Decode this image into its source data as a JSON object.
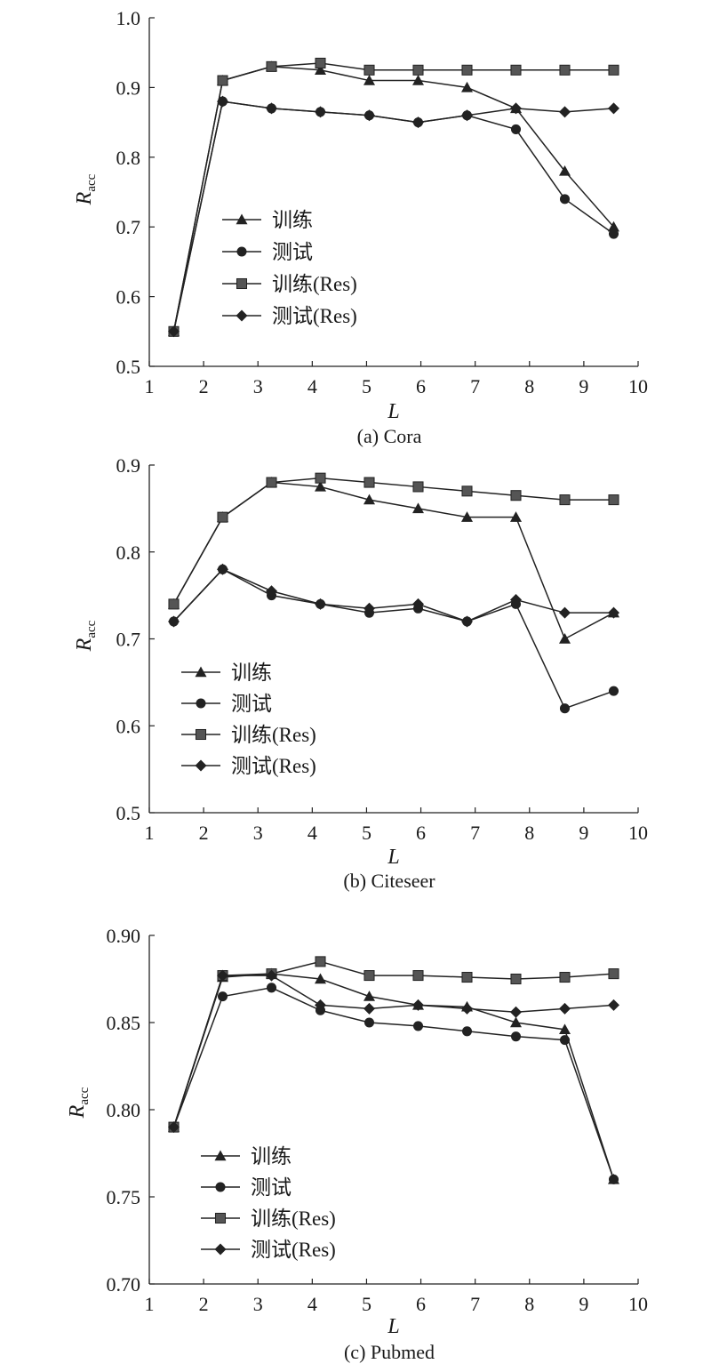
{
  "legend_labels": [
    "训练",
    "测试",
    "训练(Res)",
    "测试(Res)"
  ],
  "chart_data": [
    {
      "type": "line",
      "caption": "(a) Cora",
      "xlabel": "L",
      "ylabel_main": "R",
      "ylabel_sub": "acc",
      "xlim": [
        1,
        10
      ],
      "ylim": [
        0.5,
        1.0
      ],
      "xticks": [
        1,
        2,
        3,
        4,
        5,
        6,
        7,
        8,
        9,
        10
      ],
      "yticks": [
        0.5,
        0.6,
        0.7,
        0.8,
        0.9,
        1.0
      ],
      "ytick_decimals": 1,
      "legend_position": "center-left",
      "x": [
        1.45,
        2.35,
        3.25,
        4.15,
        5.05,
        5.95,
        6.85,
        7.75,
        8.65,
        9.55
      ],
      "series": [
        {
          "name": "训练",
          "marker": "triangle",
          "values": [
            0.55,
            0.91,
            0.93,
            0.925,
            0.91,
            0.91,
            0.9,
            0.87,
            0.78,
            0.7
          ]
        },
        {
          "name": "测试",
          "marker": "circle",
          "values": [
            0.55,
            0.88,
            0.87,
            0.865,
            0.86,
            0.85,
            0.86,
            0.84,
            0.74,
            0.69
          ]
        },
        {
          "name": "训练(Res)",
          "marker": "square",
          "values": [
            0.55,
            0.91,
            0.93,
            0.935,
            0.925,
            0.925,
            0.925,
            0.925,
            0.925,
            0.925
          ]
        },
        {
          "name": "测试(Res)",
          "marker": "diamond",
          "values": [
            0.55,
            0.88,
            0.87,
            0.865,
            0.86,
            0.85,
            0.86,
            0.87,
            0.865,
            0.87
          ]
        }
      ]
    },
    {
      "type": "line",
      "caption": "(b) Citeseer",
      "xlabel": "L",
      "ylabel_main": "R",
      "ylabel_sub": "acc",
      "xlim": [
        1,
        10
      ],
      "ylim": [
        0.5,
        0.9
      ],
      "xticks": [
        1,
        2,
        3,
        4,
        5,
        6,
        7,
        8,
        9,
        10
      ],
      "yticks": [
        0.5,
        0.6,
        0.7,
        0.8,
        0.9
      ],
      "ytick_decimals": 1,
      "legend_position": "bottom-left",
      "x": [
        1.45,
        2.35,
        3.25,
        4.15,
        5.05,
        5.95,
        6.85,
        7.75,
        8.65,
        9.55
      ],
      "series": [
        {
          "name": "训练",
          "marker": "triangle",
          "values": [
            0.74,
            0.84,
            0.88,
            0.875,
            0.86,
            0.85,
            0.84,
            0.84,
            0.7,
            0.73
          ]
        },
        {
          "name": "测试",
          "marker": "circle",
          "values": [
            0.72,
            0.78,
            0.75,
            0.74,
            0.73,
            0.735,
            0.72,
            0.74,
            0.62,
            0.64
          ]
        },
        {
          "name": "训练(Res)",
          "marker": "square",
          "values": [
            0.74,
            0.84,
            0.88,
            0.885,
            0.88,
            0.875,
            0.87,
            0.865,
            0.86,
            0.86
          ]
        },
        {
          "name": "测试(Res)",
          "marker": "diamond",
          "values": [
            0.72,
            0.78,
            0.755,
            0.74,
            0.735,
            0.74,
            0.72,
            0.745,
            0.73,
            0.73
          ]
        }
      ]
    },
    {
      "type": "line",
      "caption": "(c) Pubmed",
      "xlabel": "L",
      "ylabel_main": "R",
      "ylabel_sub": "acc",
      "xlim": [
        1,
        10
      ],
      "ylim": [
        0.7,
        0.9
      ],
      "xticks": [
        1,
        2,
        3,
        4,
        5,
        6,
        7,
        8,
        9,
        10
      ],
      "yticks": [
        0.7,
        0.75,
        0.8,
        0.85,
        0.9
      ],
      "ytick_decimals": 2,
      "legend_position": "bottom-left",
      "x": [
        1.45,
        2.35,
        3.25,
        4.15,
        5.05,
        5.95,
        6.85,
        7.75,
        8.65,
        9.55
      ],
      "series": [
        {
          "name": "训练",
          "marker": "triangle",
          "values": [
            0.79,
            0.876,
            0.878,
            0.875,
            0.865,
            0.86,
            0.859,
            0.85,
            0.846,
            0.76
          ]
        },
        {
          "name": "测试",
          "marker": "circle",
          "values": [
            0.79,
            0.865,
            0.87,
            0.857,
            0.85,
            0.848,
            0.845,
            0.842,
            0.84,
            0.76
          ]
        },
        {
          "name": "训练(Res)",
          "marker": "square",
          "values": [
            0.79,
            0.877,
            0.878,
            0.885,
            0.877,
            0.877,
            0.876,
            0.875,
            0.876,
            0.878
          ]
        },
        {
          "name": "测试(Res)",
          "marker": "diamond",
          "values": [
            0.79,
            0.877,
            0.877,
            0.86,
            0.858,
            0.86,
            0.858,
            0.856,
            0.858,
            0.86
          ]
        }
      ]
    }
  ]
}
